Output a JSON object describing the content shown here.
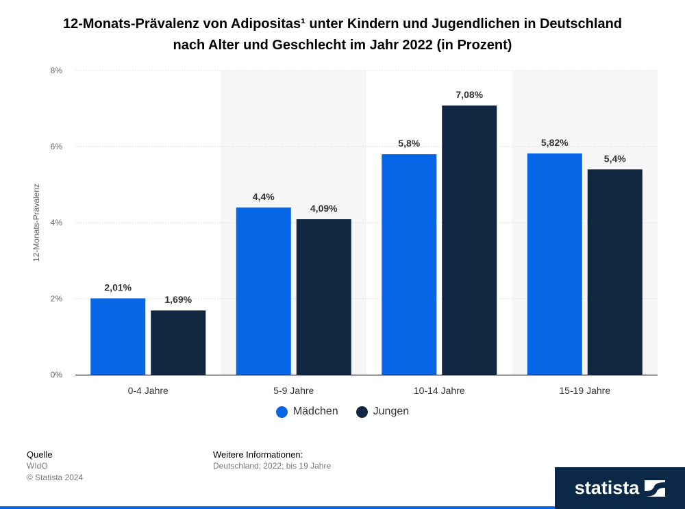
{
  "title": "12-Monats-Prävalenz von Adipositas¹ unter Kindern und Jugendlichen in Deutschland nach Alter und Geschlecht im Jahr 2022 (in Prozent)",
  "chart_data": {
    "type": "bar",
    "title": "12-Monats-Prävalenz von Adipositas¹ unter Kindern und Jugendlichen in Deutschland nach Alter und Geschlecht im Jahr 2022 (in Prozent)",
    "xlabel": "",
    "ylabel": "12-Monats-Prävalenz",
    "ylim": [
      0,
      8
    ],
    "yticks": [
      "0%",
      "2%",
      "4%",
      "6%",
      "8%"
    ],
    "categories": [
      "0-4 Jahre",
      "5-9 Jahre",
      "10-14 Jahre",
      "15-19 Jahre"
    ],
    "series": [
      {
        "name": "Mädchen",
        "color": "#0666e5",
        "values": [
          2.01,
          4.4,
          5.8,
          5.82
        ],
        "labels": [
          "2,01%",
          "4,4%",
          "5,8%",
          "5,82%"
        ]
      },
      {
        "name": "Jungen",
        "color": "#112640",
        "values": [
          1.69,
          4.09,
          7.08,
          5.4
        ],
        "labels": [
          "1,69%",
          "4,09%",
          "7,08%",
          "5,4%"
        ]
      }
    ],
    "grid": true,
    "legend": "bottom-center"
  },
  "legend": {
    "items": [
      {
        "label": "Mädchen"
      },
      {
        "label": "Jungen"
      }
    ]
  },
  "footer": {
    "source_heading": "Quelle",
    "source": "WIdO",
    "copyright": "© Statista 2024",
    "info_heading": "Weitere Informationen:",
    "info": "Deutschland; 2022; bis 19 Jahre"
  },
  "brand": {
    "name": "statista"
  }
}
